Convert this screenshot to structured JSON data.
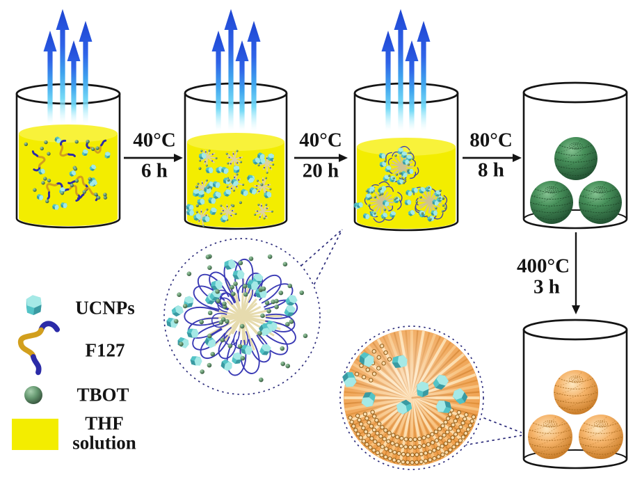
{
  "figure": {
    "kind": "nanoparticle-synthesis-scheme",
    "steps": [
      {
        "temp": "40°C",
        "time": "6 h"
      },
      {
        "temp": "40°C",
        "time": "20 h"
      },
      {
        "temp": "80°C",
        "time": "8 h"
      },
      {
        "temp": "400°C",
        "time": "3 h"
      }
    ]
  },
  "legend": {
    "items": [
      {
        "id": "ucnp",
        "label": "UCNPs"
      },
      {
        "id": "f127",
        "label": "F127"
      },
      {
        "id": "tbot",
        "label": "TBOT"
      },
      {
        "id": "thf",
        "label": "THF solution"
      }
    ]
  },
  "colors": {
    "thf_yellow": "#f3ed00",
    "liquid_surface": "#f8f23a",
    "arrow_blue_dark": "#1e45d2",
    "arrow_blue_mid": "#2f63e8",
    "arrow_cyan": "#3fa4ee",
    "arrow_cyan_light": "#6fd8f6",
    "ucnp_teal": "#53c3c6",
    "ucnp_teal_light": "#a5e9e6",
    "ucnp_teal_dark": "#3a9aa2",
    "f127_gold": "#d29f1d",
    "f127_navy": "#2b2ba8",
    "tbot_green": "#679a72",
    "sphere_green": "#47905a",
    "sphere_orange": "#f5b369",
    "titania_orange": "#ef9f4a",
    "micelle_tan": "#ddd2a2",
    "loop_navy": "#3a3ab5",
    "outline_black": "#141414",
    "dash_navy": "#2b2b7a"
  }
}
